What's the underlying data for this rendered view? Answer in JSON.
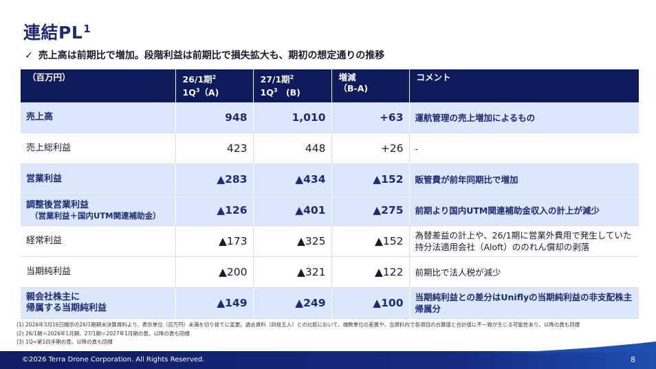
{
  "page": {
    "title": "連結PL",
    "title_sup": "1",
    "subtitle": "売上高は前期比で増加。段階利益は前期比で損失拡大も、期初の想定通りの推移"
  },
  "table": {
    "headers": [
      {
        "line1": "（百万円）",
        "line2": ""
      },
      {
        "line1": "26/1期",
        "sup1": "2",
        "line2": "1Q",
        "sup2": "3",
        "line2b": "（A)"
      },
      {
        "line1": "27/1期",
        "sup1": "2",
        "line2": "1Q",
        "sup2": "3",
        "line2b": "　(B)"
      },
      {
        "line1": "増減",
        "line2": "（B-A)"
      },
      {
        "line1": "コメント",
        "line2": ""
      }
    ],
    "rows": [
      {
        "label": "売上高",
        "sublabel": "",
        "a": "948",
        "b": "1,010",
        "diff": "+63",
        "comment": "運航管理の売上増加によるもの"
      },
      {
        "label": "売上総利益",
        "sublabel": "",
        "a": "423",
        "b": "448",
        "diff": "+26",
        "comment": "-"
      },
      {
        "label": "営業利益",
        "sublabel": "",
        "a": "▲283",
        "b": "▲434",
        "diff": "▲152",
        "comment": "販管費が前年同期比で増加"
      },
      {
        "label": "調整後営業利益",
        "sublabel": "（営業利益＋国内UTM関連補助金）",
        "a": "▲126",
        "b": "▲401",
        "diff": "▲275",
        "comment": "前期より国内UTM関連補助金収入の計上が減少"
      },
      {
        "label": "経常利益",
        "sublabel": "",
        "a": "▲173",
        "b": "▲325",
        "diff": "▲152",
        "comment": "為替差益の計上や、26/1期に営業外費用で発生していた持分法適用会社（Aloft）ののれん償却の剥落"
      },
      {
        "label": "当期純利益",
        "sublabel": "",
        "a": "▲200",
        "b": "▲321",
        "diff": "▲122",
        "comment": "前期比で法人税が減少"
      },
      {
        "label": "親会社株主に",
        "sublabel": "帰属する当期純利益",
        "a": "▲149",
        "b": "▲249",
        "diff": "▲100",
        "comment": "当期純利益との差分はUniflyの当期純利益の非支配株主帰属分"
      }
    ]
  },
  "notes": [
    "(1)  2026年3月16日開示の26/1期期末決算資料より、表示単位（百万円）未満を切り捨てに変更。過去資料（四捨五入）との比較において、端数単位の差異や、当資料内で各項目の合算値と合計値に不一致が生じる可能性あり。以降の頁も同様",
    "(2)  26/1期＝2026年1月期、27/1期＝2027年1月期の意。以降の頁も同様",
    "(3)  1Q=第1四半期の意。以降の頁も同様"
  ],
  "footer": {
    "copyright": "©2026 Terra Drone Corporation. All Rights Reserved.",
    "page_number": "8"
  },
  "colors": {
    "header_bg": "#0d1a5c",
    "highlight_row": "#dbe8fb",
    "title": "#1e2a78"
  }
}
